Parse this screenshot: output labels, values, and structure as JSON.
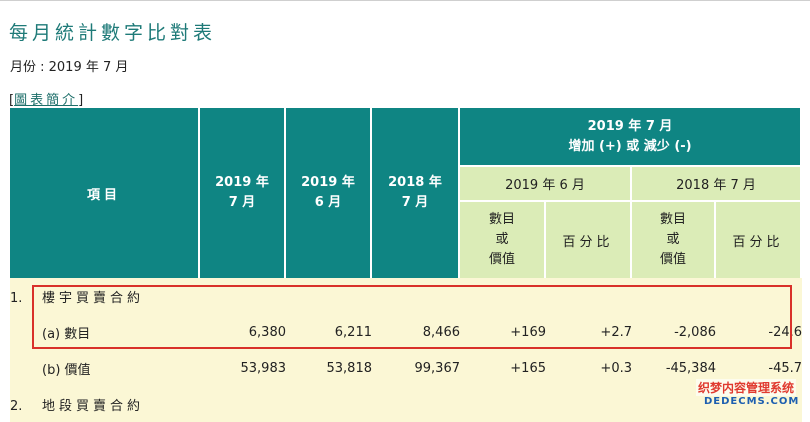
{
  "page": {
    "title": "每月統計數字比對表",
    "month_label": "月份 : 2019 年 7 月",
    "intro": {
      "open": "[",
      "link": "圖表簡介",
      "close": "]"
    }
  },
  "table": {
    "item_header": "項目",
    "col_2019_07": [
      "2019 年",
      "7 月"
    ],
    "col_2019_06": [
      "2019 年",
      "6 月"
    ],
    "col_2018_07": [
      "2018 年",
      "7 月"
    ],
    "change_header": [
      "2019 年 7 月",
      "增加 (+) 或 減少 (-)"
    ],
    "vs_2019_06": "2019 年 6 月",
    "vs_2018_07": "2018 年 7 月",
    "amount_header": [
      "數目",
      "或",
      "價值"
    ],
    "percent_header": "百分比",
    "rows": [
      {
        "idx": "1.",
        "label": "樓宇買賣合約",
        "values": [
          "",
          "",
          "",
          "",
          "",
          "",
          ""
        ]
      },
      {
        "idx": "",
        "label": "(a) 數目",
        "values": [
          "6,380",
          "6,211",
          "8,466",
          "+169",
          "+2.7",
          "-2,086",
          "-24.6"
        ]
      },
      {
        "idx": "",
        "label": "(b) 價值",
        "values": [
          "53,983",
          "53,818",
          "99,367",
          "+165",
          "+0.3",
          "-45,384",
          "-45.7"
        ]
      },
      {
        "idx": "2.",
        "label": "地段買賣合約",
        "values": [
          "",
          "",
          "",
          "",
          "",
          "",
          ""
        ]
      }
    ]
  },
  "watermark": {
    "line1": "织梦内容管理系统",
    "line2": "DEDECMS.COM"
  },
  "colors": {
    "teal_header": "#0f8583",
    "green_header": "#dbecb7",
    "row_bg": "#fbf7d5",
    "highlight": "#d9312a",
    "title": "#1e7a78"
  }
}
